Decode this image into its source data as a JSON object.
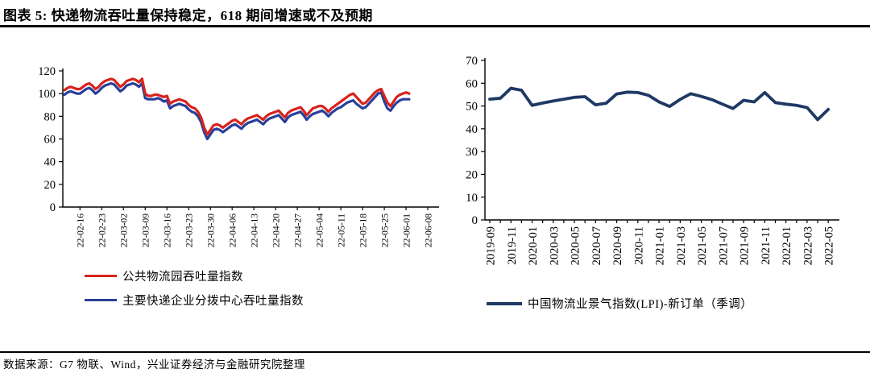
{
  "header": {
    "title": "图表 5: 快递物流吞吐量保持稳定，618 期间增速或不及预期"
  },
  "footer": {
    "source": "数据来源：G7 物联、Wind，兴业证券经济与金融研究院整理"
  },
  "colors": {
    "red_series": "#d7231d",
    "navy_series_left": "#28409a",
    "navy_series_right": "#1f3864",
    "axis": "#000000",
    "rule": "#000000"
  },
  "chart_data": [
    {
      "type": "line",
      "title": "",
      "xlabel": "",
      "ylabel": "",
      "ylim": [
        0,
        120
      ],
      "ytick_step": 20,
      "grid": false,
      "legend_position": "bottom-left",
      "x_tick_labels": [
        "22-02-16",
        "22-02-23",
        "22-03-02",
        "22-03-09",
        "22-03-16",
        "22-03-23",
        "22-03-30",
        "22-04-06",
        "22-04-13",
        "22-04-20",
        "22-04-27",
        "22-05-04",
        "22-05-11",
        "22-05-18",
        "22-05-25",
        "22-06-01",
        "22-06-08"
      ],
      "x_is_daily": true,
      "tick_every_days": 7,
      "first_tick_day_index": 5,
      "series": [
        {
          "name": "公共物流园吞吐量指数",
          "color": "#d7231d",
          "values": [
            103,
            105,
            106,
            105,
            104,
            104,
            106,
            108,
            109,
            107,
            104,
            106,
            109,
            111,
            112,
            113,
            112,
            109,
            106,
            108,
            111,
            112,
            113,
            112,
            110,
            113,
            100,
            98,
            98,
            99,
            99,
            98,
            97,
            98,
            91,
            93,
            94,
            95,
            94,
            93,
            90,
            88,
            87,
            84,
            79,
            70,
            64,
            68,
            72,
            73,
            72,
            70,
            72,
            74,
            76,
            77,
            75,
            73,
            76,
            78,
            79,
            80,
            81,
            79,
            77,
            80,
            82,
            83,
            84,
            85,
            82,
            79,
            83,
            85,
            86,
            87,
            88,
            85,
            81,
            84,
            87,
            88,
            89,
            89,
            87,
            84,
            87,
            89,
            91,
            93,
            95,
            97,
            99,
            100,
            97,
            94,
            91,
            92,
            95,
            98,
            101,
            103,
            104,
            98,
            92,
            89,
            93,
            97,
            99,
            100,
            101,
            100
          ]
        },
        {
          "name": "主要快递企业分拨中心吞吐量指数",
          "color": "#28409a",
          "values": [
            99,
            101,
            102,
            101,
            100,
            100,
            102,
            104,
            105,
            103,
            100,
            102,
            105,
            107,
            108,
            109,
            108,
            105,
            102,
            104,
            107,
            108,
            109,
            108,
            106,
            109,
            96,
            95,
            95,
            95,
            96,
            95,
            93,
            94,
            87,
            89,
            90,
            91,
            90,
            89,
            86,
            84,
            83,
            80,
            75,
            66,
            60,
            64,
            68,
            69,
            68,
            66,
            68,
            70,
            72,
            73,
            71,
            69,
            72,
            74,
            75,
            76,
            77,
            75,
            73,
            76,
            78,
            79,
            80,
            81,
            78,
            75,
            79,
            81,
            82,
            83,
            84,
            81,
            77,
            80,
            82,
            83,
            84,
            85,
            83,
            80,
            83,
            85,
            87,
            88,
            90,
            92,
            93,
            94,
            91,
            89,
            87,
            88,
            91,
            94,
            97,
            100,
            101,
            93,
            87,
            85,
            89,
            92,
            94,
            95,
            95,
            95
          ]
        }
      ]
    },
    {
      "type": "line",
      "title": "",
      "xlabel": "",
      "ylabel": "",
      "ylim": [
        0,
        70
      ],
      "ytick_step": 10,
      "grid": false,
      "legend_position": "bottom-center",
      "x": [
        "2019-09",
        "2019-10",
        "2019-11",
        "2019-12",
        "2020-01",
        "2020-02",
        "2020-03",
        "2020-04",
        "2020-05",
        "2020-06",
        "2020-07",
        "2020-08",
        "2020-09",
        "2020-10",
        "2020-11",
        "2020-12",
        "2021-01",
        "2021-02",
        "2021-03",
        "2021-04",
        "2021-05",
        "2021-06",
        "2021-07",
        "2021-08",
        "2021-09",
        "2021-10",
        "2021-11",
        "2021-12",
        "2022-01",
        "2022-02",
        "2022-03",
        "2022-04",
        "2022-05"
      ],
      "label_every": 2,
      "series": [
        {
          "name": "中国物流业景气指数(LPI)-新订单（季调）",
          "color": "#1f3864",
          "values": [
            53.0,
            53.4,
            57.8,
            56.9,
            50.3,
            51.3,
            52.2,
            53.0,
            53.8,
            54.1,
            50.5,
            51.2,
            55.3,
            56.1,
            55.9,
            54.7,
            51.8,
            49.8,
            52.9,
            55.4,
            54.2,
            52.8,
            50.8,
            48.9,
            52.5,
            51.8,
            55.9,
            51.5,
            50.8,
            50.3,
            49.3,
            44.0,
            48.5
          ]
        }
      ]
    }
  ]
}
